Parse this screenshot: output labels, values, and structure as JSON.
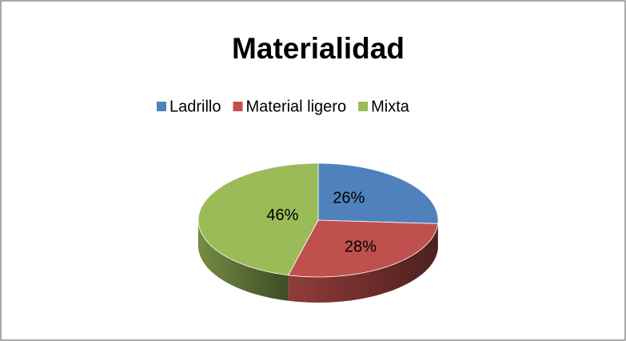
{
  "chart_data": {
    "type": "pie",
    "title": "Materialidad",
    "categories": [
      "Ladrillo",
      "Material ligero",
      "Mixta"
    ],
    "values": [
      26,
      28,
      46
    ],
    "value_labels": [
      "26%",
      "28%",
      "46%"
    ],
    "colors": [
      "#4f81bd",
      "#c0504d",
      "#9bbb59"
    ],
    "legend": "top"
  }
}
